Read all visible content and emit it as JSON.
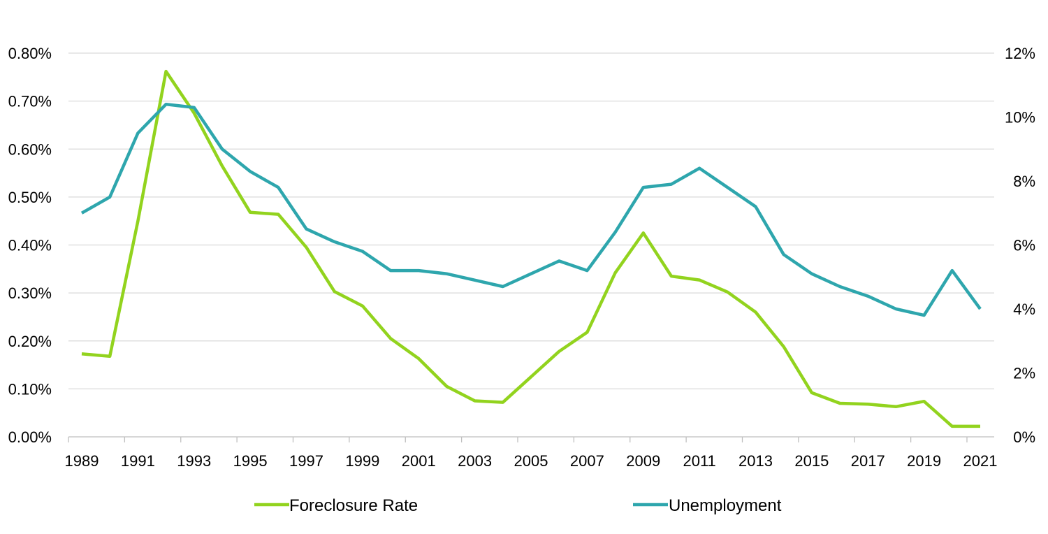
{
  "chart_data": {
    "type": "line",
    "title": "",
    "xlabel": "",
    "ylabel": "",
    "x_tick_labels": [
      "1989",
      "1991",
      "1993",
      "1995",
      "1997",
      "1999",
      "2001",
      "2003",
      "2005",
      "2007",
      "2009",
      "2011",
      "2013",
      "2015",
      "2017",
      "2019",
      "2021"
    ],
    "left_axis": {
      "ylim": [
        0,
        0.8
      ],
      "ticks": [
        0,
        0.1,
        0.2,
        0.3,
        0.4,
        0.5,
        0.6,
        0.7,
        0.8
      ],
      "tick_labels": [
        "0.00%",
        "0.10%",
        "0.20%",
        "0.30%",
        "0.40%",
        "0.50%",
        "0.60%",
        "0.70%",
        "0.80%"
      ]
    },
    "right_axis": {
      "ylim": [
        0,
        12
      ],
      "ticks": [
        0,
        2,
        4,
        6,
        8,
        10,
        12
      ],
      "tick_labels": [
        "0%",
        "2%",
        "4%",
        "6%",
        "8%",
        "10%",
        "12%"
      ]
    },
    "grid": true,
    "legend_position": "bottom",
    "series": [
      {
        "name": "Foreclosure Rate",
        "axis": "left",
        "color": "#92d31e",
        "x": [
          1989,
          1990,
          1991,
          1992,
          1993,
          1994,
          1995,
          1996,
          1997,
          1998,
          1999,
          2000,
          2001,
          2002,
          2003,
          2004,
          2005,
          2006,
          2007,
          2008,
          2009,
          2010,
          2011,
          2012,
          2013,
          2014,
          2015,
          2016,
          2017,
          2018,
          2019,
          2020,
          2021
        ],
        "values": [
          0.173,
          0.168,
          0.45,
          0.762,
          0.675,
          0.565,
          0.468,
          0.464,
          0.395,
          0.303,
          0.273,
          0.205,
          0.163,
          0.105,
          0.075,
          0.072,
          0.125,
          0.178,
          0.218,
          0.342,
          0.425,
          0.335,
          0.327,
          0.302,
          0.26,
          0.188,
          0.092,
          0.07,
          0.068,
          0.063,
          0.074,
          0.022,
          0.022
        ]
      },
      {
        "name": "Unemployment",
        "axis": "right",
        "color": "#2ea6ad",
        "x": [
          1989,
          1990,
          1991,
          1992,
          1993,
          1994,
          1995,
          1996,
          1997,
          1998,
          1999,
          2000,
          2001,
          2002,
          2003,
          2004,
          2005,
          2006,
          2007,
          2008,
          2009,
          2010,
          2011,
          2012,
          2013,
          2014,
          2015,
          2016,
          2017,
          2018,
          2019,
          2020,
          2021
        ],
        "values": [
          7.0,
          7.5,
          9.5,
          10.4,
          10.3,
          9.0,
          8.3,
          7.8,
          6.5,
          6.1,
          5.8,
          5.2,
          5.2,
          5.1,
          4.9,
          4.7,
          5.1,
          5.5,
          5.2,
          6.4,
          7.8,
          7.9,
          8.4,
          7.8,
          7.2,
          5.7,
          5.1,
          4.7,
          4.4,
          4.0,
          3.8,
          5.2,
          4.0
        ]
      }
    ]
  }
}
